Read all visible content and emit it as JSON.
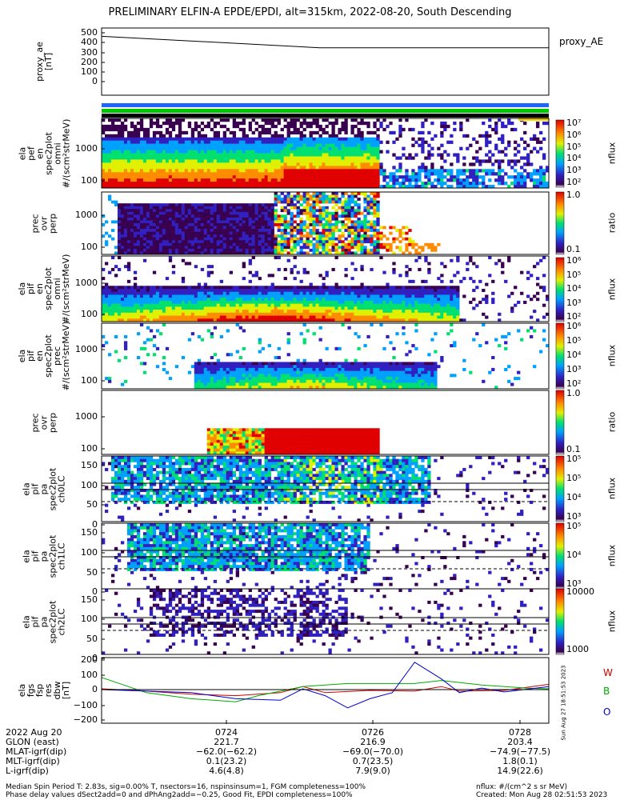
{
  "chart_data": {
    "type": "spectrogram",
    "title": "PRELIMINARY ELFIN-A EPDE/EPDI, alt=315km, 2022-08-20, South Descending",
    "x_range": [
      "07:23:00",
      "07:28:40"
    ],
    "x_ticks": [
      "0724",
      "0726",
      "0728"
    ],
    "panels": [
      {
        "label": "proxy_ae\n[nT]",
        "type": "line",
        "yticks": [
          "500",
          "400",
          "300",
          "200",
          "100",
          "0"
        ],
        "legend": "proxy_AE",
        "series": [
          {
            "name": "proxy_AE",
            "x": [
              "07:23:00",
              "07:25:50",
              "07:28:40"
            ],
            "values": [
              470,
              370,
              370
            ]
          }
        ]
      },
      {
        "label": "ela\npef\nen\nspec2plot\nomni\n#/(scm²strMeV)",
        "type": "heatmap",
        "yticks": [
          "1000",
          "100"
        ],
        "colorbar": {
          "ticks": [
            "10⁷",
            "10⁶",
            "10⁵",
            "10⁴",
            "10³",
            "10²"
          ],
          "label": "nflux"
        }
      },
      {
        "label": "prec\novr\nperp",
        "type": "heatmap",
        "yticks": [
          "1000",
          "100"
        ],
        "colorbar": {
          "ticks": [
            "1.0",
            "0.1"
          ],
          "label": "ratio"
        }
      },
      {
        "label": "ela\npif\nen\nspec2plot\nomni\n#/(scm²strMeV)",
        "type": "heatmap",
        "yticks": [
          "1000",
          "100"
        ],
        "colorbar": {
          "ticks": [
            "10⁶",
            "10⁵",
            "10⁴",
            "10³",
            "10²"
          ],
          "label": "nflux"
        }
      },
      {
        "label": "ela\npif\nen\nspec2plot\nprec\n#/(scm²strMeV)",
        "type": "heatmap",
        "yticks": [
          "1000",
          "100"
        ],
        "colorbar": {
          "ticks": [
            "10⁶",
            "10⁵",
            "10⁴",
            "10³",
            "10²"
          ],
          "label": "nflux"
        }
      },
      {
        "label": "prec\novr\nperp",
        "type": "heatmap",
        "yticks": [
          "1000",
          "100"
        ],
        "colorbar": {
          "ticks": [
            "1.0",
            "0.1"
          ],
          "label": "ratio"
        }
      },
      {
        "label": "ela\npif\npa\nspec2plot\nch0LC",
        "type": "heatmap",
        "yticks": [
          "150",
          "100",
          "50",
          "0"
        ],
        "colorbar": {
          "ticks": [
            "10⁵",
            "10⁵",
            "10⁴",
            "10³"
          ],
          "label": "nflux"
        }
      },
      {
        "label": "ela\npif\npa\nspec2plot\nch1LC",
        "type": "heatmap",
        "yticks": [
          "150",
          "100",
          "50",
          "0"
        ],
        "colorbar": {
          "ticks": [
            "10⁵",
            "10⁴",
            "10³"
          ],
          "label": "nflux"
        }
      },
      {
        "label": "ela\npif\npa\nspec2plot\nch2LC",
        "type": "heatmap",
        "yticks": [
          "150",
          "100",
          "50",
          "0"
        ],
        "colorbar": {
          "ticks": [
            "10000",
            "1000"
          ],
          "label": "nflux"
        }
      },
      {
        "label": "ela\nfgs\nfsp\nres\ndbw\n[nT]",
        "type": "line",
        "yticks": [
          "200",
          "100",
          "0",
          "−100",
          "−200"
        ],
        "legend_labels": [
          {
            "text": "W",
            "color": "#cc0000"
          },
          {
            "text": "B",
            "color": "#00aa00"
          },
          {
            "text": "O",
            "color": "#0000cc"
          }
        ],
        "series": [
          {
            "name": "W",
            "color": "#cc0000",
            "x": [
              0,
              10,
              20,
              30,
              40,
              45,
              50,
              60,
              70,
              76,
              80,
              90,
              100
            ],
            "values": [
              5,
              -10,
              -30,
              -40,
              -20,
              20,
              -20,
              -5,
              -10,
              20,
              -10,
              -5,
              35
            ]
          },
          {
            "name": "B",
            "color": "#00aa00",
            "x": [
              0,
              5,
              10,
              20,
              30,
              35,
              45,
              55,
              70,
              76,
              85,
              95,
              100
            ],
            "values": [
              80,
              30,
              -20,
              -60,
              -80,
              -40,
              20,
              40,
              40,
              60,
              30,
              10,
              5
            ]
          },
          {
            "name": "O",
            "color": "#0000cc",
            "x": [
              0,
              10,
              20,
              30,
              40,
              45,
              50,
              55,
              60,
              65,
              70,
              76,
              80,
              85,
              90,
              100
            ],
            "values": [
              0,
              -10,
              -20,
              -60,
              -70,
              5,
              -40,
              -120,
              -60,
              -20,
              180,
              70,
              -20,
              10,
              -15,
              20
            ]
          }
        ]
      }
    ]
  },
  "orbit_table": {
    "rows": [
      {
        "label": "2022 Aug 20",
        "values": [
          "0724",
          "0726",
          "0728"
        ]
      },
      {
        "label": "GLON (east)",
        "values": [
          "221.7",
          "216.9",
          "203.4"
        ]
      },
      {
        "label": "MLAT-igrf(dip)",
        "values": [
          "−62.0(−62.2)",
          "−69.0(−70.0)",
          "−74.9(−77.5)"
        ]
      },
      {
        "label": "MLT-igrf(dip)",
        "values": [
          "0.1(23.2)",
          "0.7(23.5)",
          "1.8(0.1)"
        ]
      },
      {
        "label": "L-igrf(dip)",
        "values": [
          "4.6(4.8)",
          "7.9(9.0)",
          "14.9(22.6)"
        ]
      }
    ]
  },
  "footer": {
    "line1": "Median Spin Period T: 2.83s, sig=0.00% T, nsectors=16, nspinsinsum=1, FGM completeness=100%",
    "line2": "Phase delay values dSect2add=0 and dPhAng2add=−0.25, Good Fit, EPDI completeness=100%",
    "right1": "nflux: #/(cm^2 s sr MeV)",
    "right2": "Created: Mon Aug 28 02:51:53 2023"
  },
  "side_stamp": "Sun Aug 27 18:51:53 2023",
  "colors": {
    "status_blue": "#1e64ff",
    "status_green": "#00c800",
    "status_black": "#000000",
    "status_yellow": "#ffd700"
  }
}
